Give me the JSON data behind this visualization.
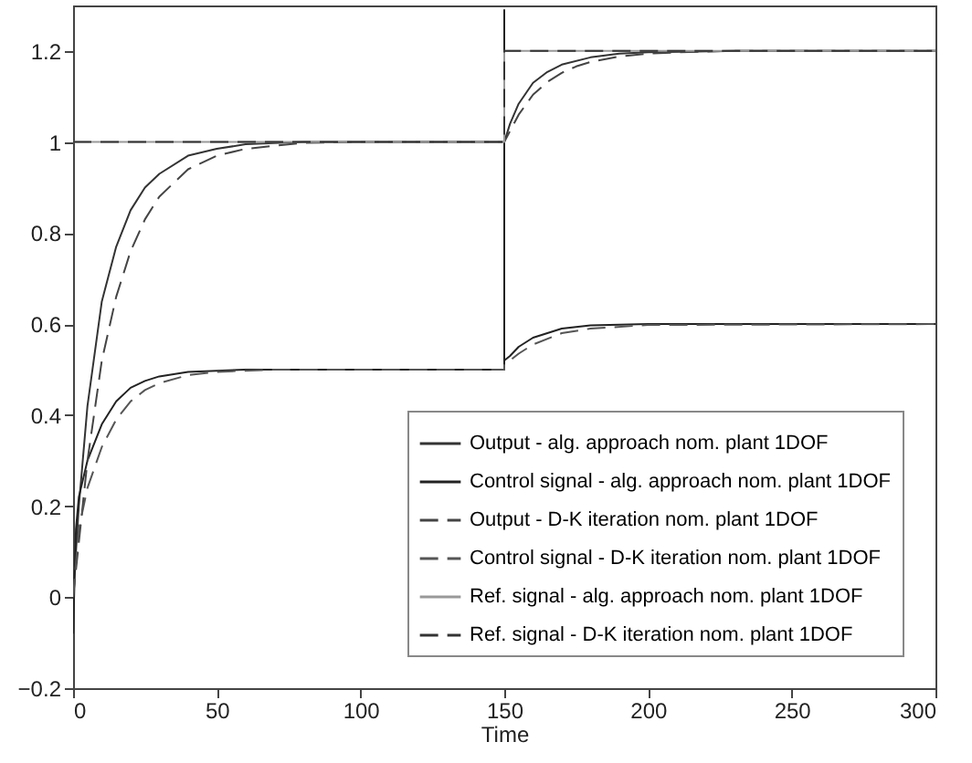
{
  "chart_data": {
    "type": "line",
    "xlabel": "Time",
    "xlim": [
      0,
      300
    ],
    "xticks": [
      0,
      50,
      100,
      150,
      200,
      250,
      300
    ],
    "ylim": [
      -0.2,
      1.3
    ],
    "yticks": [
      -0.2,
      0,
      0.2,
      0.4,
      0.6,
      0.8,
      1,
      1.2
    ],
    "grid": false,
    "legend": "bottom right",
    "marker": "none",
    "series": [
      {
        "name": "Output - alg. approach nom. plant 1DOF",
        "color": "#333333",
        "line_style": "solid",
        "x": [
          0,
          2,
          5,
          10,
          15,
          20,
          25,
          30,
          40,
          50,
          60,
          80,
          100,
          150,
          152,
          155,
          160,
          165,
          170,
          180,
          190,
          200,
          230,
          300
        ],
        "values": [
          0,
          0.2,
          0.42,
          0.65,
          0.77,
          0.85,
          0.9,
          0.93,
          0.97,
          0.985,
          0.995,
          1,
          1,
          1,
          1.04,
          1.084,
          1.13,
          1.154,
          1.17,
          1.186,
          1.194,
          1.197,
          1.2,
          1.2
        ]
      },
      {
        "name": "Control signal - alg. approach nom. plant 1DOF",
        "color": "#222222",
        "line_style": "solid",
        "x": [
          0,
          1,
          2,
          5,
          10,
          15,
          20,
          25,
          30,
          40,
          60,
          150,
          150,
          150,
          152,
          155,
          160,
          170,
          180,
          200,
          300
        ],
        "values": [
          -0.08,
          0.15,
          0.22,
          0.3,
          0.38,
          0.43,
          0.46,
          0.475,
          0.485,
          0.495,
          0.5,
          0.5,
          1.29,
          0.52,
          0.53,
          0.55,
          0.57,
          0.59,
          0.597,
          0.6,
          0.6
        ]
      },
      {
        "name": "Output - D-K iteration nom. plant 1DOF",
        "color": "#444444",
        "line_style": "dashed",
        "x": [
          0,
          2,
          5,
          10,
          15,
          20,
          25,
          30,
          40,
          50,
          60,
          80,
          100,
          150,
          152,
          155,
          160,
          165,
          170,
          175,
          180,
          190,
          200,
          210,
          230,
          300
        ],
        "values": [
          0,
          0.12,
          0.3,
          0.52,
          0.66,
          0.76,
          0.83,
          0.88,
          0.94,
          0.97,
          0.985,
          0.998,
          1,
          1,
          1.024,
          1.06,
          1.104,
          1.132,
          1.152,
          1.166,
          1.176,
          1.188,
          1.194,
          1.197,
          1.2,
          1.2
        ]
      },
      {
        "name": "Control signal - D-K iteration nom. plant 1DOF",
        "color": "#555555",
        "line_style": "dashed",
        "x": [
          0,
          2,
          5,
          10,
          15,
          20,
          25,
          30,
          40,
          50,
          70,
          150,
          150,
          155,
          160,
          170,
          180,
          200,
          300
        ],
        "values": [
          0,
          0.15,
          0.24,
          0.33,
          0.39,
          0.43,
          0.455,
          0.47,
          0.488,
          0.495,
          0.5,
          0.5,
          0.51,
          0.535,
          0.555,
          0.58,
          0.59,
          0.598,
          0.6
        ]
      },
      {
        "name": "Ref. signal - alg. approach nom. plant 1DOF",
        "color": "#999999",
        "line_style": "solid",
        "x": [
          0,
          150,
          150,
          300
        ],
        "values": [
          1,
          1,
          1.2,
          1.2
        ]
      },
      {
        "name": "Ref. signal - D-K iteration nom. plant 1DOF",
        "color": "#333333",
        "line_style": "dashed",
        "x": [
          0,
          150,
          150,
          300
        ],
        "values": [
          1,
          1,
          1.2,
          1.2
        ]
      }
    ]
  }
}
